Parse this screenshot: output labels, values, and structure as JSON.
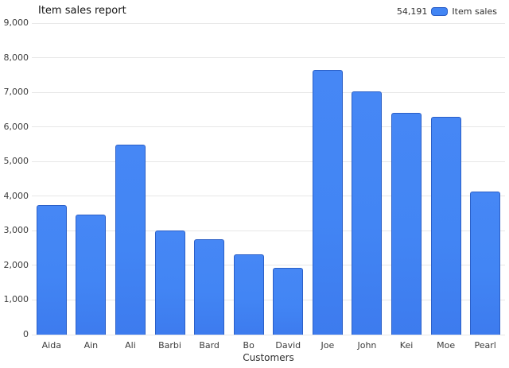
{
  "header": {
    "title": "Item sales report"
  },
  "legend": {
    "total": "54,191",
    "label": "Item sales"
  },
  "colors": {
    "bar_fill": "#4285f4",
    "bar_fill_top": "#4687f5",
    "bar_fill_bottom": "#3d7bee",
    "bar_border": "#2b5fc7",
    "grid_line": "#e7e7e7",
    "axis_text": "#3c3c3c",
    "title_text": "#141414"
  },
  "chart_data": {
    "type": "bar",
    "title": "Item sales report",
    "series_name": "Item sales",
    "series_total": 54191,
    "categories": [
      "Aida",
      "Ain",
      "Ali",
      "Barbi",
      "Bard",
      "Bo",
      "David",
      "Joe",
      "John",
      "Kei",
      "Moe",
      "Pearl"
    ],
    "values": [
      3731,
      3470,
      5480,
      3010,
      2745,
      2330,
      1930,
      7650,
      7020,
      6410,
      6280,
      4135
    ],
    "xlabel": "Customers",
    "ylabel": "",
    "ylim": [
      0,
      9000
    ],
    "ytick_step": 1000,
    "y_tick_labels": [
      "0",
      "1,000",
      "2,000",
      "3,000",
      "4,000",
      "5,000",
      "6,000",
      "7,000",
      "8,000",
      "9,000"
    ],
    "grid": true,
    "legend_position": "top-right"
  }
}
